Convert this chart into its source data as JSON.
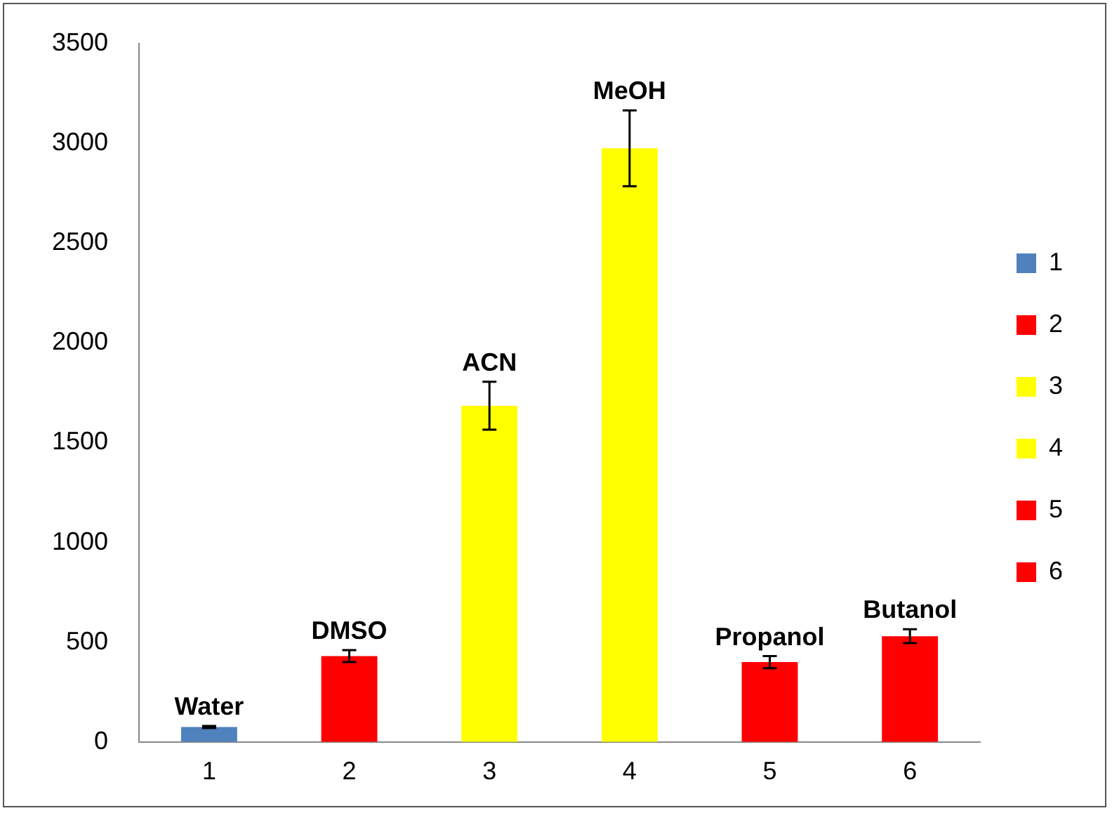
{
  "chart_data": {
    "type": "bar",
    "categories": [
      "1",
      "2",
      "3",
      "4",
      "5",
      "6"
    ],
    "series": [
      {
        "name": "1",
        "color": "#4f81bd",
        "values": [
          75,
          null,
          null,
          null,
          null,
          null
        ],
        "errors": [
          5,
          null,
          null,
          null,
          null,
          null
        ]
      },
      {
        "name": "2",
        "color": "#ff0000",
        "values": [
          null,
          430,
          null,
          null,
          null,
          null
        ],
        "errors": [
          null,
          30,
          null,
          null,
          null,
          null
        ]
      },
      {
        "name": "3",
        "color": "#ffff00",
        "values": [
          null,
          null,
          1685,
          null,
          null,
          null
        ],
        "errors": [
          null,
          null,
          120,
          null,
          null,
          null
        ]
      },
      {
        "name": "4",
        "color": "#ffff00",
        "values": [
          null,
          null,
          null,
          2975,
          null,
          null
        ],
        "errors": [
          null,
          null,
          null,
          190,
          null,
          null
        ]
      },
      {
        "name": "5",
        "color": "#ff0000",
        "values": [
          null,
          null,
          null,
          null,
          400,
          null
        ],
        "errors": [
          null,
          null,
          null,
          null,
          30,
          null
        ]
      },
      {
        "name": "6",
        "color": "#ff0000",
        "values": [
          null,
          null,
          null,
          null,
          null,
          530
        ],
        "errors": [
          null,
          null,
          null,
          null,
          null,
          35
        ]
      }
    ],
    "ylim": [
      0,
      3500
    ],
    "yticks": [
      0,
      500,
      1000,
      1500,
      2000,
      2500,
      3000,
      3500
    ],
    "grid": false,
    "legend": "right",
    "annotations": [
      {
        "text": "Water",
        "x": "1",
        "y": 75
      },
      {
        "text": "DMSO",
        "x": "2",
        "y": 430
      },
      {
        "text": "ACN",
        "x": "3",
        "y": 1685
      },
      {
        "text": "MeOH",
        "x": "4",
        "y": 2975
      },
      {
        "text": "Propanol",
        "x": "5",
        "y": 400
      },
      {
        "text": "Butanol",
        "x": "6",
        "y": 530
      }
    ]
  }
}
